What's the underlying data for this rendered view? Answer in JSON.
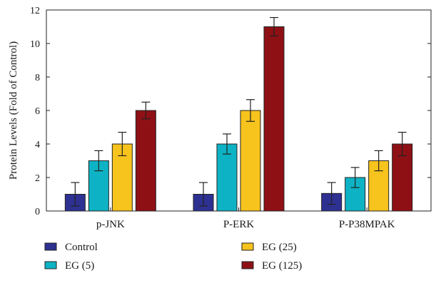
{
  "chart_data": {
    "type": "bar",
    "title": "",
    "xlabel": "",
    "ylabel": "Protein Levels (Fold of Control)",
    "ylim": [
      0,
      12
    ],
    "yticks": [
      0,
      2,
      4,
      6,
      8,
      10,
      12
    ],
    "categories": [
      "p-JNK",
      "P-ERK",
      "P-P38MPAK"
    ],
    "series": [
      {
        "name": "Control",
        "color": "#2e3192",
        "values": [
          1.0,
          1.0,
          1.05
        ],
        "errors": [
          0.7,
          0.7,
          0.65
        ]
      },
      {
        "name": "EG (5)",
        "color": "#0db3c4",
        "values": [
          3.0,
          4.0,
          2.0
        ],
        "errors": [
          0.6,
          0.6,
          0.6
        ]
      },
      {
        "name": "EG (25)",
        "color": "#f7c31d",
        "values": [
          4.0,
          6.0,
          3.0
        ],
        "errors": [
          0.7,
          0.65,
          0.6
        ]
      },
      {
        "name": "EG (125)",
        "color": "#8e1015",
        "values": [
          6.0,
          11.0,
          4.0
        ],
        "errors": [
          0.5,
          0.55,
          0.7
        ]
      }
    ],
    "legend_position": "bottom",
    "grid": false
  }
}
